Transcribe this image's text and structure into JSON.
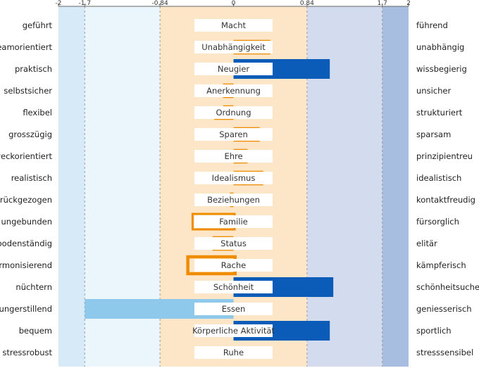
{
  "chart_data": {
    "type": "bar",
    "orientation": "horizontal",
    "xlim": [
      -2,
      2
    ],
    "ticks": [
      -2,
      -1.7,
      -0.84,
      0,
      0.84,
      1.7,
      2
    ],
    "tick_labels": [
      "-2",
      "-1.7",
      "-0.84",
      "0",
      "0.84",
      "1.7",
      "2"
    ],
    "grid": false,
    "bands": [
      {
        "from": -2,
        "to": -1.7,
        "color": "#d6eaf8"
      },
      {
        "from": -1.7,
        "to": -0.84,
        "color": "#ebf5fc"
      },
      {
        "from": -0.84,
        "to": 0,
        "color": "#fde6c8"
      },
      {
        "from": 0,
        "to": 0.84,
        "color": "#fde6c8"
      },
      {
        "from": 0.84,
        "to": 1.7,
        "color": "#d3dcee"
      },
      {
        "from": 1.7,
        "to": 2,
        "color": "#a8bee0"
      }
    ],
    "colors": {
      "orange": "#ef8c00",
      "darkblue": "#0b5cb8",
      "lightblue": "#8ec8ea"
    },
    "categories": [
      {
        "name": "Macht",
        "left": "geführt",
        "right": "führend",
        "bars": []
      },
      {
        "name": "Unabhängigkeit",
        "left": "teamorientiert",
        "right": "unabhängig",
        "bars": [
          {
            "value": 0.42,
            "offset": -0.26,
            "style": "orange-solid"
          },
          {
            "value": 0.42,
            "offset": 0.26,
            "style": "orange-solid"
          }
        ]
      },
      {
        "name": "Neugier",
        "left": "praktisch",
        "right": "wissbegierig",
        "bars": [
          {
            "value": 1.1,
            "offset": 0,
            "style": "darkblue"
          }
        ]
      },
      {
        "name": "Anerkennung",
        "left": "selbstsicher",
        "right": "unsicher",
        "bars": [
          {
            "value": -0.12,
            "offset": -0.26,
            "style": "orange-solid"
          },
          {
            "value": -0.12,
            "offset": 0.26,
            "style": "orange-solid"
          }
        ]
      },
      {
        "name": "Ordnung",
        "left": "flexibel",
        "right": "strukturiert",
        "bars": [
          {
            "value": -0.12,
            "offset": -0.26,
            "style": "orange-solid"
          },
          {
            "value": -0.22,
            "offset": 0.26,
            "style": "orange-solid"
          }
        ]
      },
      {
        "name": "Sparen",
        "left": "grosszügig",
        "right": "sparsam",
        "bars": [
          {
            "value": 0.3,
            "offset": -0.26,
            "style": "orange-solid"
          },
          {
            "value": 0.3,
            "offset": 0.26,
            "style": "orange-solid"
          }
        ]
      },
      {
        "name": "Ehre",
        "left": "zweckorientiert",
        "right": "prinzipientreu",
        "bars": [
          {
            "value": 0.16,
            "offset": -0.26,
            "style": "orange-solid"
          },
          {
            "value": 0.16,
            "offset": 0.26,
            "style": "orange-solid"
          }
        ]
      },
      {
        "name": "Idealismus",
        "left": "realistisch",
        "right": "idealistisch",
        "bars": [
          {
            "value": 0.34,
            "offset": -0.26,
            "style": "orange-solid"
          },
          {
            "value": 0.34,
            "offset": 0.26,
            "style": "orange-solid"
          }
        ]
      },
      {
        "name": "Beziehungen",
        "left": "zurückgezogen",
        "right": "kontaktfreudig",
        "bars": [
          {
            "value": -0.04,
            "offset": -0.26,
            "style": "orange-solid"
          },
          {
            "value": -0.04,
            "offset": 0.26,
            "style": "orange-solid"
          }
        ]
      },
      {
        "name": "Familie",
        "left": "ungebunden",
        "right": "fürsorglich",
        "bars": [
          {
            "value": -0.48,
            "offset": -0.26,
            "style": "orange-outline"
          },
          {
            "value": -0.48,
            "offset": 0.26,
            "style": "orange-outline"
          }
        ]
      },
      {
        "name": "Status",
        "left": "bodenständig",
        "right": "elitär",
        "bars": [
          {
            "value": -0.24,
            "offset": -0.26,
            "style": "orange-solid"
          },
          {
            "value": -0.24,
            "offset": 0.26,
            "style": "orange-solid"
          }
        ]
      },
      {
        "name": "Rache",
        "left": "harmonisierend",
        "right": "kämpferisch",
        "bars": [
          {
            "value": -0.54,
            "offset": -0.26,
            "style": "orange-outline-thick"
          },
          {
            "value": -0.54,
            "offset": 0.26,
            "style": "orange-outline-thick"
          }
        ]
      },
      {
        "name": "Schönheit",
        "left": "nüchtern",
        "right": "schönheitsuchend",
        "bars": [
          {
            "value": 1.14,
            "offset": 0,
            "style": "darkblue"
          }
        ]
      },
      {
        "name": "Essen",
        "left": "hungerstillend",
        "right": "geniesserisch",
        "bars": [
          {
            "value": -1.7,
            "offset": 0,
            "style": "lightblue"
          }
        ]
      },
      {
        "name": "Körperliche Aktivität",
        "left": "bequem",
        "right": "sportlich",
        "bars": [
          {
            "value": 1.1,
            "offset": 0,
            "style": "darkblue"
          }
        ]
      },
      {
        "name": "Ruhe",
        "left": "stressrobust",
        "right": "stresssensibel",
        "bars": []
      }
    ]
  }
}
